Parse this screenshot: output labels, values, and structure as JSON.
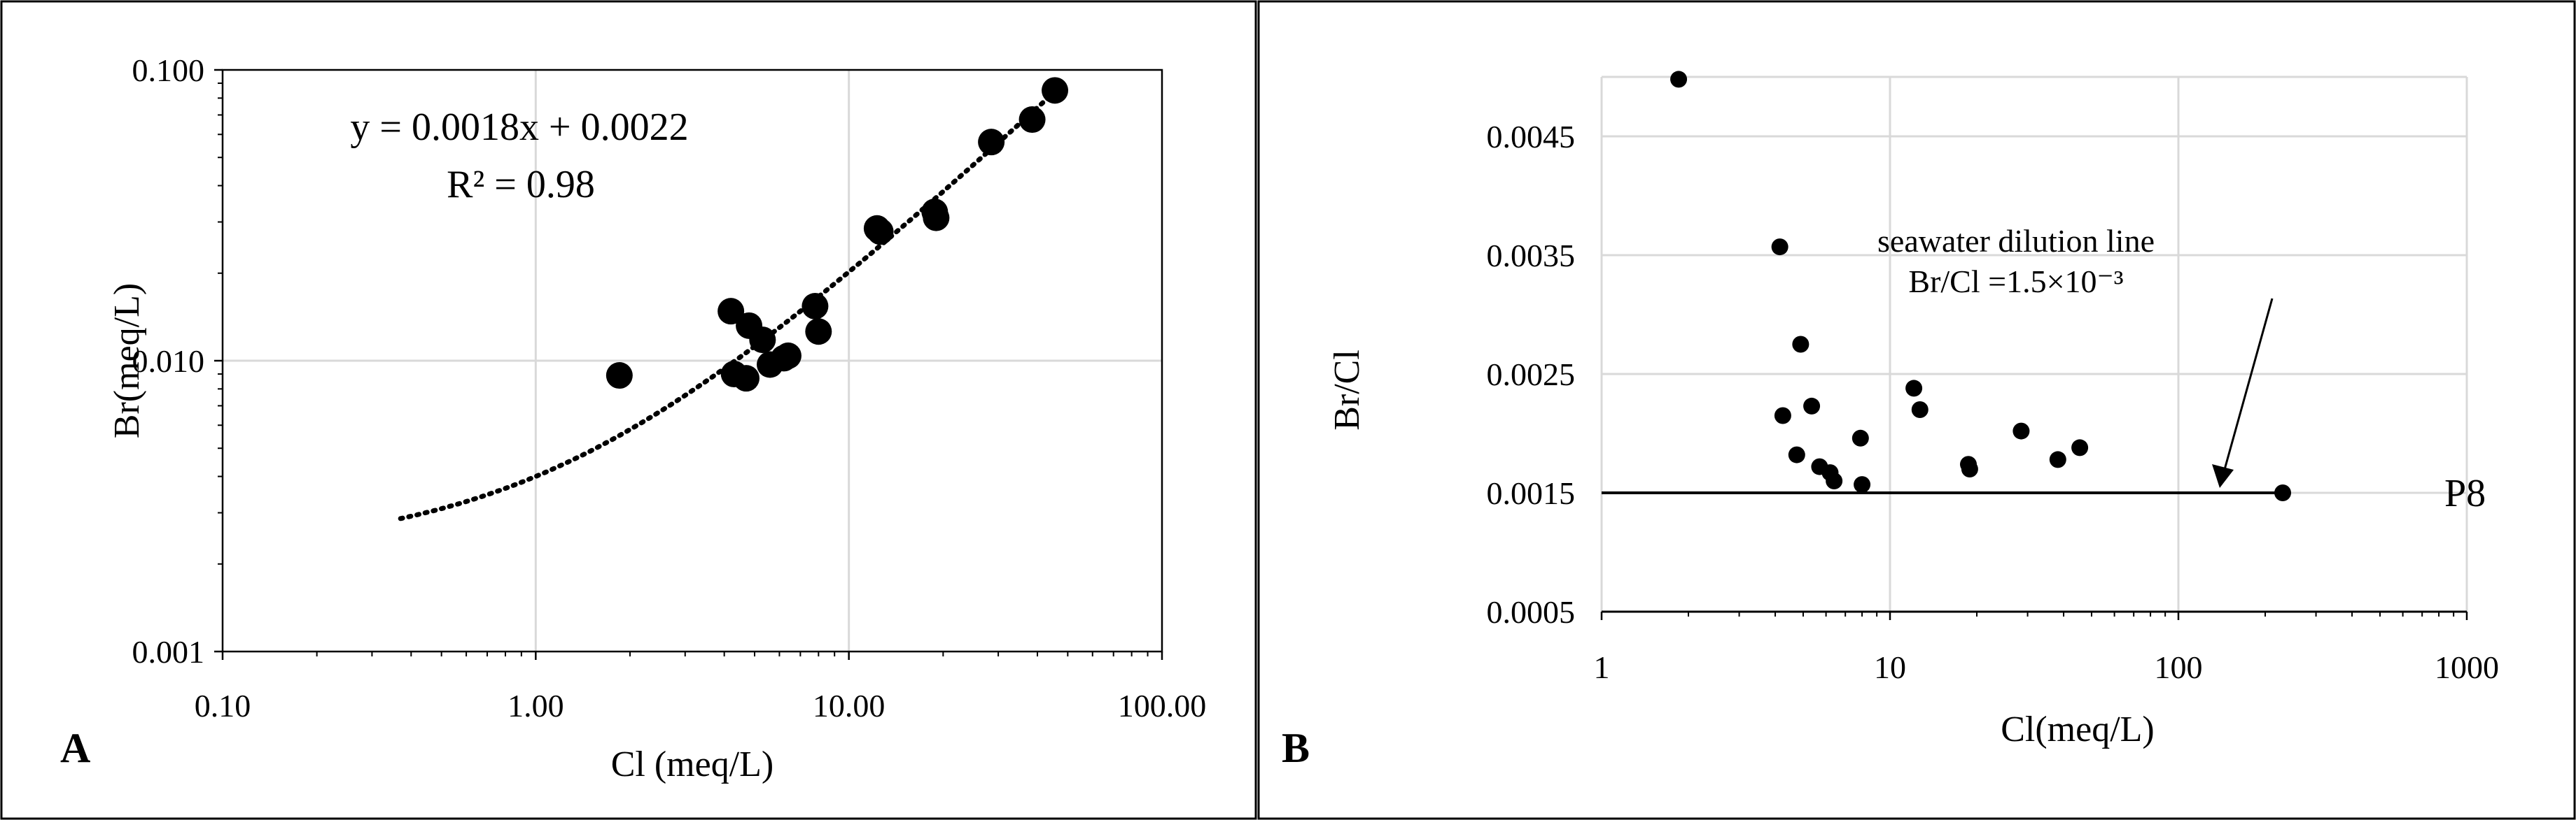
{
  "chart_data": [
    {
      "panel_label": "A",
      "type": "scatter",
      "xlabel": "Cl (meq/L)",
      "ylabel": "Br(meq/L)",
      "x_scale": "log",
      "y_scale": "log",
      "xlim": [
        0.1,
        100
      ],
      "ylim": [
        0.001,
        0.1
      ],
      "x_ticks": [
        "0.10",
        "1.00",
        "10.00",
        "100.00"
      ],
      "y_ticks": [
        "0.001",
        "0.010",
        "0.100"
      ],
      "grid": true,
      "marker_color": "#000000",
      "equation": "y = 0.0018x + 0.0022",
      "r2": "R² = 0.98",
      "trendline": {
        "slope": 0.0018,
        "intercept": 0.0022,
        "x_range": [
          0.37,
          46
        ],
        "style": "dotted"
      },
      "points": [
        {
          "x": 1.85,
          "y": 0.0089
        },
        {
          "x": 4.2,
          "y": 0.0148
        },
        {
          "x": 4.3,
          "y": 0.009
        },
        {
          "x": 4.7,
          "y": 0.0087
        },
        {
          "x": 4.8,
          "y": 0.0132
        },
        {
          "x": 5.3,
          "y": 0.0118
        },
        {
          "x": 5.6,
          "y": 0.0097
        },
        {
          "x": 6.2,
          "y": 0.0102
        },
        {
          "x": 6.4,
          "y": 0.0104
        },
        {
          "x": 7.8,
          "y": 0.0154
        },
        {
          "x": 8.0,
          "y": 0.0126
        },
        {
          "x": 12.3,
          "y": 0.0285
        },
        {
          "x": 12.6,
          "y": 0.0278
        },
        {
          "x": 18.8,
          "y": 0.0325
        },
        {
          "x": 19.0,
          "y": 0.031
        },
        {
          "x": 28.5,
          "y": 0.0565
        },
        {
          "x": 38.5,
          "y": 0.0675
        },
        {
          "x": 45.5,
          "y": 0.085
        }
      ]
    },
    {
      "panel_label": "B",
      "type": "scatter",
      "xlabel": "Cl(meq/L)",
      "ylabel": "Br/Cl",
      "x_scale": "log",
      "xlim": [
        1,
        1000
      ],
      "ylim": [
        0.0005,
        0.005
      ],
      "x_ticks": [
        "1",
        "10",
        "100",
        "1000"
      ],
      "y_ticks": [
        "0.0005",
        "0.0015",
        "0.0025",
        "0.0035",
        "0.0045"
      ],
      "grid": true,
      "marker_color": "#000000",
      "annotation_line1": "seawater dilution line",
      "annotation_line2": "Br/Cl =1.5×10⁻³",
      "reference_line_y": 0.0015,
      "point_label": "P8",
      "labeled_point": {
        "x": 230,
        "y": 0.0015
      },
      "points": [
        {
          "x": 1.85,
          "y": 0.00498
        },
        {
          "x": 4.15,
          "y": 0.00357
        },
        {
          "x": 4.25,
          "y": 0.00215
        },
        {
          "x": 4.75,
          "y": 0.00182
        },
        {
          "x": 4.9,
          "y": 0.00275
        },
        {
          "x": 5.35,
          "y": 0.00223
        },
        {
          "x": 5.7,
          "y": 0.00172
        },
        {
          "x": 6.2,
          "y": 0.00167
        },
        {
          "x": 6.4,
          "y": 0.0016
        },
        {
          "x": 7.9,
          "y": 0.00196
        },
        {
          "x": 8.0,
          "y": 0.00157
        },
        {
          "x": 12.1,
          "y": 0.00238
        },
        {
          "x": 12.7,
          "y": 0.0022
        },
        {
          "x": 18.7,
          "y": 0.00174
        },
        {
          "x": 18.9,
          "y": 0.0017
        },
        {
          "x": 28.5,
          "y": 0.00202
        },
        {
          "x": 38.2,
          "y": 0.00178
        },
        {
          "x": 45.5,
          "y": 0.00188
        },
        {
          "x": 230,
          "y": 0.0015
        }
      ]
    }
  ]
}
